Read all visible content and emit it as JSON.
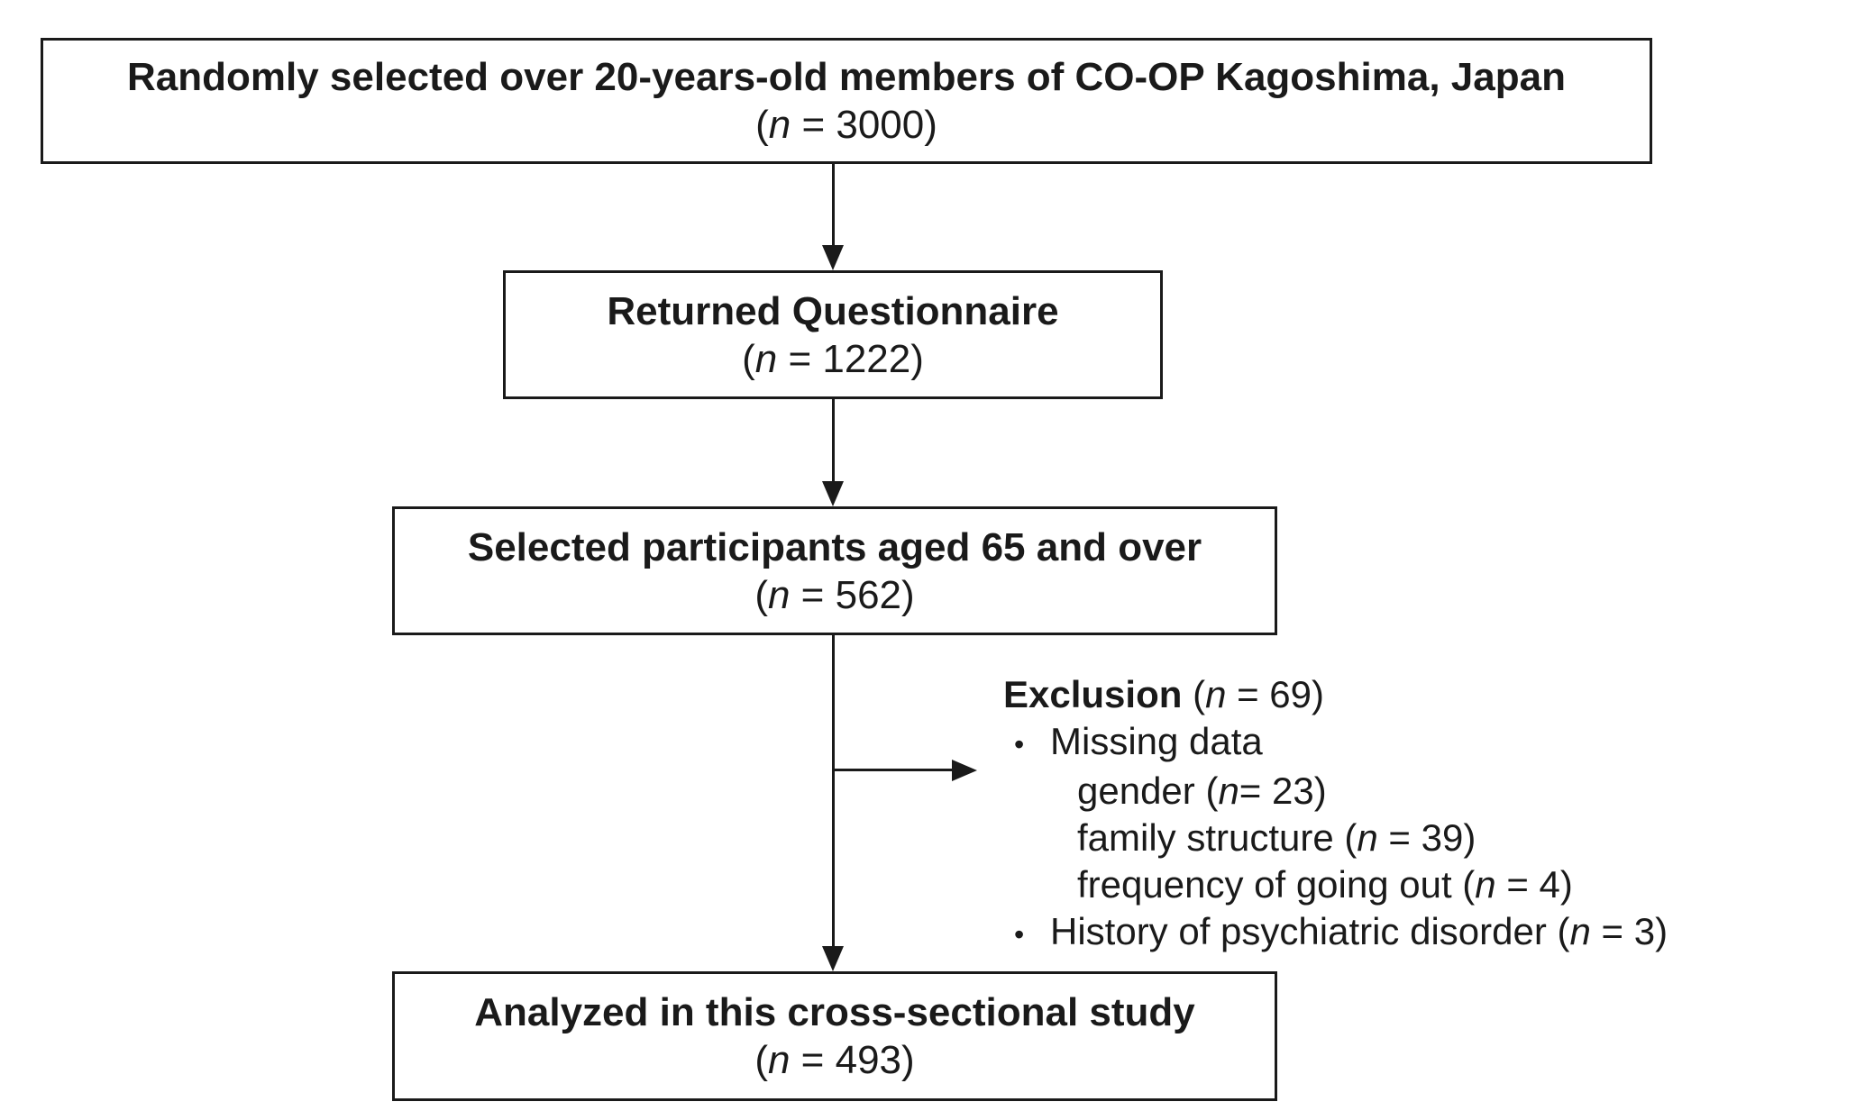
{
  "diagram": {
    "background_color": "#ffffff",
    "line_color": "#1a1a1a",
    "boxes": {
      "population": {
        "title": "Randomly selected over 20-years-old members of CO-OP Kagoshima, Japan",
        "n": {
          "pre": "(",
          "var": "n",
          "post": " = 3000)"
        }
      },
      "returned": {
        "title": "Returned Questionnaire",
        "n": {
          "pre": "(",
          "var": "n",
          "post": " = 1222)"
        }
      },
      "selected": {
        "title": "Selected participants aged 65 and over",
        "n": {
          "pre": "(",
          "var": "n",
          "post": " = 562)"
        }
      },
      "analyzed": {
        "title": "Analyzed in this cross-sectional study",
        "n": {
          "pre": "(",
          "var": "n",
          "post": " = 493)"
        }
      }
    },
    "exclusion": {
      "bullet": "•",
      "heading": {
        "bold": "Exclusion",
        "pre": " (",
        "var": "n",
        "post": " = 69)"
      },
      "items": {
        "missing": {
          "text": "Missing data"
        },
        "gender": {
          "pre": "gender (",
          "var": "n",
          "post": "= 23)"
        },
        "family": {
          "pre": "family structure (",
          "var": "n",
          "post": " = 39)"
        },
        "frequency": {
          "pre": "frequency of going out (",
          "var": "n",
          "post": " = 4)"
        },
        "psychiatric": {
          "pre": "History of psychiatric disorder (",
          "var": "n",
          "post": " = 3)"
        }
      }
    }
  }
}
